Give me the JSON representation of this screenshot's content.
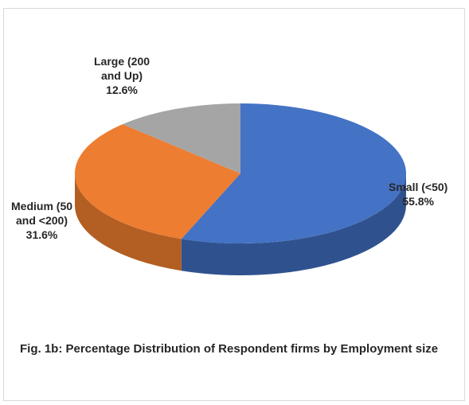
{
  "chart_data": {
    "type": "pie",
    "three_d": true,
    "slices": [
      {
        "label": "Small (<50)",
        "value": 55.8,
        "value_label": "55.8%",
        "color": "#4472c4",
        "side_color": "#2f528f"
      },
      {
        "label": "Medium (50 and <200)",
        "value": 31.6,
        "value_label": "31.6%",
        "color": "#ed7d31",
        "side_color": "#b35e22"
      },
      {
        "label": "Large (200 and Up)",
        "value": 12.6,
        "value_label": "12.6%",
        "color": "#a5a5a5",
        "side_color": "#7c7c7c"
      }
    ],
    "labels_display": [
      "Small (<50)\n55.8%",
      "Medium (50\nand <200)\n31.6%",
      "Large (200\nand Up)\n12.6%"
    ]
  },
  "caption": "Fig. 1b: Percentage Distribution of Respondent firms by Employment size"
}
